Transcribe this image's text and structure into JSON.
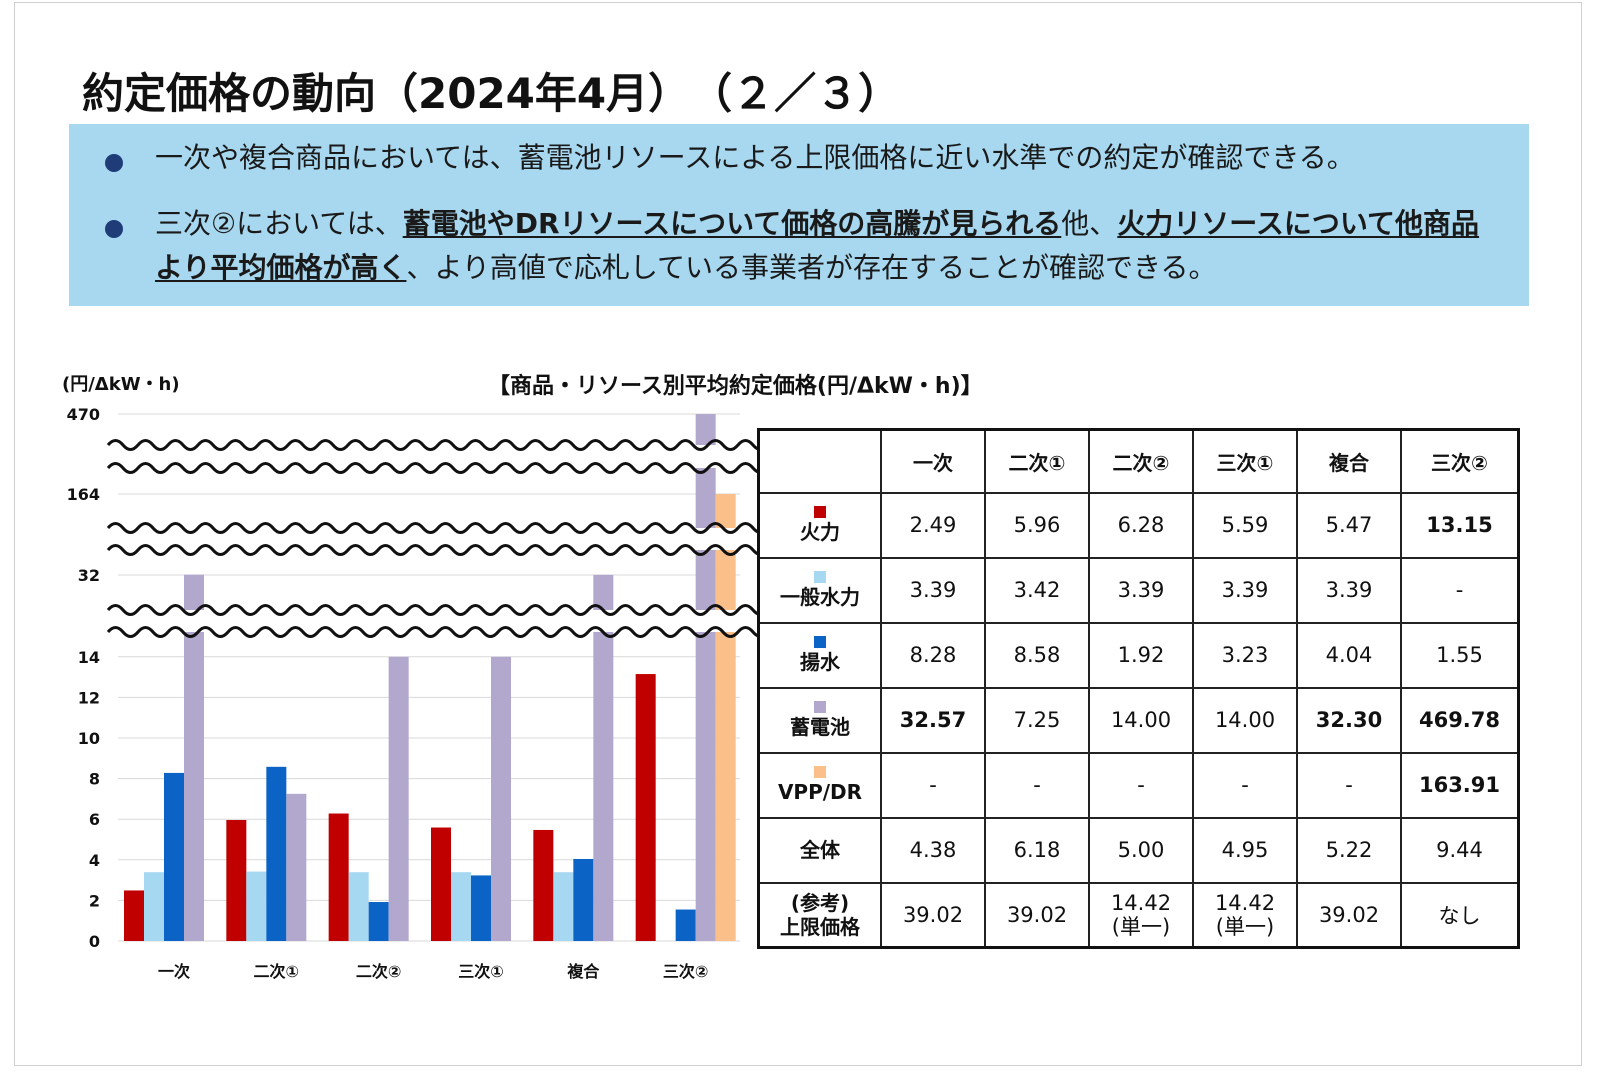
{
  "title": "約定価格の動向（2024年4月）　（２／３）",
  "summary": {
    "bullet1": "一次や複合商品においては、蓄電池リソースによる上限価格に近い水準での約定が確認できる。",
    "bullet2_part1": "三次②においては、",
    "bullet2_bold1": "蓄電池やDRリソースについて価格の高騰が見られる",
    "bullet2_part2": "他、",
    "bullet2_bold2": "火力リソースについて他商品より平均価格が高く",
    "bullet2_part3": "、より高値で応札している事業者が存在することが確認できる。"
  },
  "chart_data": {
    "type": "bar",
    "title": "【商品・リソース別平均約定価格(円/ΔkW・h)】",
    "ylabel": "(円/ΔkW・h)",
    "categories": [
      "一次",
      "二次①",
      "二次②",
      "三次①",
      "複合",
      "三次②"
    ],
    "y_ticks": [
      "0",
      "2",
      "4",
      "6",
      "8",
      "10",
      "12",
      "14",
      "32",
      "164",
      "470"
    ],
    "y_axis": "broken; linear 0–14, with compressed segments at 32, 164 and 470",
    "series": [
      {
        "name": "火力",
        "color": "#c00000",
        "values": [
          2.49,
          5.96,
          6.28,
          5.59,
          5.47,
          13.15
        ]
      },
      {
        "name": "一般水力",
        "color": "#a6d8f2",
        "values": [
          3.39,
          3.42,
          3.39,
          3.39,
          3.39,
          null
        ]
      },
      {
        "name": "揚水",
        "color": "#0b63c5",
        "values": [
          8.28,
          8.58,
          1.92,
          3.23,
          4.04,
          1.55
        ]
      },
      {
        "name": "蓄電池",
        "color": "#b2a7cc",
        "values": [
          32.57,
          7.25,
          14.0,
          14.0,
          32.3,
          469.78
        ]
      },
      {
        "name": "VPP/DR",
        "color": "#fbbf8a",
        "values": [
          null,
          null,
          null,
          null,
          null,
          163.91
        ]
      }
    ],
    "legend": "none (series identified in table)",
    "grid": true
  },
  "table": {
    "columns": [
      "",
      "一次",
      "二次①",
      "二次②",
      "三次①",
      "複合",
      "三次②"
    ],
    "rows": [
      {
        "label": "火力",
        "swatch": "#c00000",
        "cells": [
          "2.49",
          "5.96",
          "6.28",
          "5.59",
          "5.47",
          "13.15"
        ],
        "bold": [
          false,
          false,
          false,
          false,
          false,
          true
        ]
      },
      {
        "label": "一般水力",
        "swatch": "#a6d8f2",
        "cells": [
          "3.39",
          "3.42",
          "3.39",
          "3.39",
          "3.39",
          "-"
        ],
        "bold": [
          false,
          false,
          false,
          false,
          false,
          false
        ]
      },
      {
        "label": "揚水",
        "swatch": "#0b63c5",
        "cells": [
          "8.28",
          "8.58",
          "1.92",
          "3.23",
          "4.04",
          "1.55"
        ],
        "bold": [
          false,
          false,
          false,
          false,
          false,
          false
        ]
      },
      {
        "label": "蓄電池",
        "swatch": "#b2a7cc",
        "cells": [
          "32.57",
          "7.25",
          "14.00",
          "14.00",
          "32.30",
          "469.78"
        ],
        "bold": [
          true,
          false,
          false,
          false,
          true,
          true
        ]
      },
      {
        "label": "VPP/DR",
        "swatch": "#fbbf8a",
        "cells": [
          "-",
          "-",
          "-",
          "-",
          "-",
          "163.91"
        ],
        "bold": [
          false,
          false,
          false,
          false,
          false,
          true
        ]
      },
      {
        "label": "全体",
        "swatch": null,
        "cells": [
          "4.38",
          "6.18",
          "5.00",
          "4.95",
          "5.22",
          "9.44"
        ],
        "bold": [
          false,
          false,
          false,
          false,
          false,
          false
        ]
      },
      {
        "label": "(参考)\n上限価格",
        "swatch": null,
        "cells": [
          "39.02",
          "39.02",
          "14.42\n(単一)",
          "14.42\n(単一)",
          "39.02",
          "なし"
        ],
        "bold": [
          false,
          false,
          false,
          false,
          false,
          false
        ]
      }
    ]
  }
}
